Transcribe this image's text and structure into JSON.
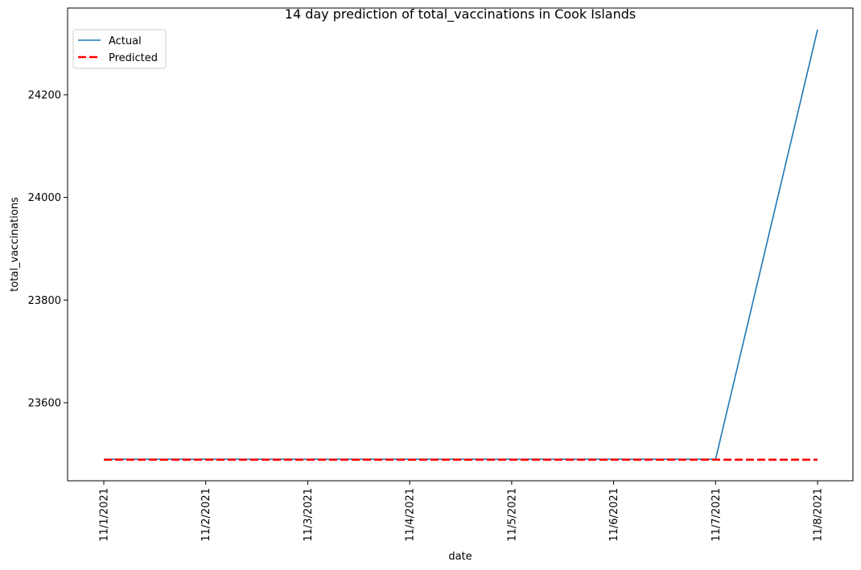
{
  "chart_data": {
    "type": "line",
    "title": "14 day prediction of total_vaccinations in Cook Islands",
    "xlabel": "date",
    "ylabel": "total_vaccinations",
    "categories": [
      "11/1/2021",
      "11/2/2021",
      "11/3/2021",
      "11/4/2021",
      "11/5/2021",
      "11/6/2021",
      "11/7/2021",
      "11/8/2021"
    ],
    "series": [
      {
        "name": "Actual",
        "color": "#1f77b4",
        "style": "solid",
        "values": [
          23490,
          23490,
          23490,
          23490,
          23490,
          23490,
          23490,
          24327
        ]
      },
      {
        "name": "Predicted",
        "color": "#ff0000",
        "style": "dashed",
        "values": [
          23489,
          23489,
          23489,
          23489,
          23489,
          23489,
          23489,
          23489
        ]
      }
    ],
    "ylim": [
      23448,
      24369
    ],
    "yticks": [
      23600,
      23800,
      24000,
      24200
    ],
    "grid": false,
    "legend": "top-left"
  }
}
